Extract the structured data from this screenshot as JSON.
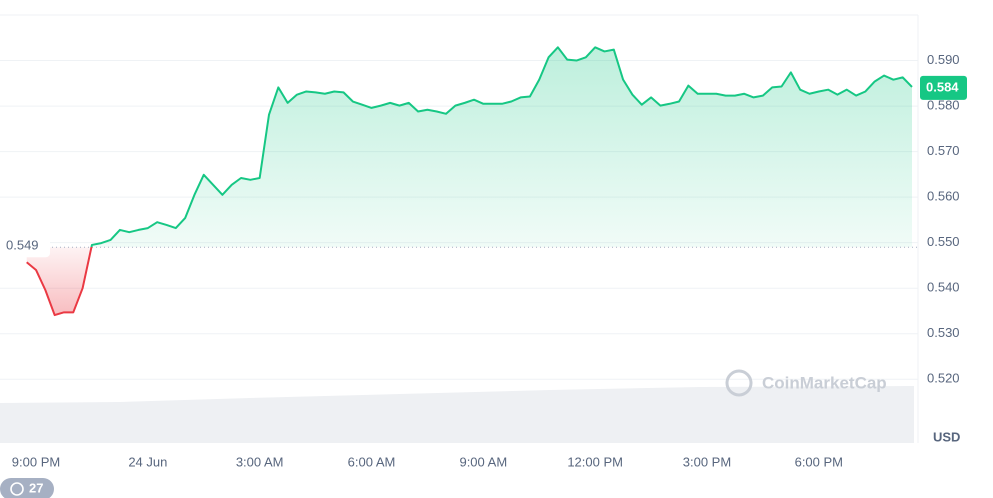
{
  "chart_data": {
    "type": "line",
    "categories": [
      null,
      "9:00 PM",
      null,
      null,
      null,
      null,
      null,
      null,
      null,
      null,
      null,
      null,
      null,
      "24 Jun",
      null,
      null,
      null,
      null,
      null,
      null,
      null,
      null,
      null,
      null,
      null,
      "3:00 AM",
      null,
      null,
      null,
      null,
      null,
      null,
      null,
      null,
      null,
      null,
      null,
      "6:00 AM",
      null,
      null,
      null,
      null,
      null,
      null,
      null,
      null,
      null,
      null,
      null,
      "9:00 AM",
      null,
      null,
      null,
      null,
      null,
      null,
      null,
      null,
      null,
      null,
      null,
      "12:00 PM",
      null,
      null,
      null,
      null,
      null,
      null,
      null,
      null,
      null,
      null,
      null,
      "3:00 PM",
      null,
      null,
      null,
      null,
      null,
      null,
      null,
      null,
      null,
      null,
      null,
      "6:00 PM",
      null,
      null,
      null,
      null,
      null,
      null,
      null,
      null,
      null,
      null
    ],
    "values": [
      0.5457,
      0.544,
      0.5396,
      0.5341,
      0.5347,
      0.5347,
      0.54,
      0.5495,
      0.5499,
      0.5506,
      0.5528,
      0.5523,
      0.5528,
      0.5532,
      0.5545,
      0.5539,
      0.5532,
      0.5554,
      0.5605,
      0.5649,
      0.5627,
      0.5605,
      0.5627,
      0.5642,
      0.5638,
      0.5642,
      0.5781,
      0.5841,
      0.5807,
      0.5825,
      0.5832,
      0.583,
      0.5827,
      0.5832,
      0.583,
      0.581,
      0.5803,
      0.5796,
      0.5801,
      0.5807,
      0.5801,
      0.5807,
      0.5788,
      0.5792,
      0.5788,
      0.5783,
      0.5801,
      0.5807,
      0.5814,
      0.5805,
      0.5805,
      0.5805,
      0.581,
      0.5819,
      0.5821,
      0.5858,
      0.5907,
      0.5929,
      0.5902,
      0.59,
      0.5907,
      0.5929,
      0.592,
      0.5924,
      0.5858,
      0.5825,
      0.5803,
      0.5819,
      0.5801,
      0.5805,
      0.581,
      0.5845,
      0.5827,
      0.5827,
      0.5827,
      0.5823,
      0.5823,
      0.5827,
      0.5819,
      0.5823,
      0.5841,
      0.5843,
      0.5874,
      0.5836,
      0.5827,
      0.5832,
      0.5836,
      0.5825,
      0.5836,
      0.5823,
      0.5832,
      0.5854,
      0.5867,
      0.5858,
      0.5863,
      0.5842
    ],
    "up_color": "#16c784",
    "down_color": "#ea3943",
    "baseline": 0.549,
    "last_value": 0.584,
    "ylim": [
      0.506,
      0.6
    ],
    "yticks": [
      {
        "value": 0.52,
        "label": "0.520"
      },
      {
        "value": 0.53,
        "label": "0.530"
      },
      {
        "value": 0.54,
        "label": "0.540"
      },
      {
        "value": 0.55,
        "label": "0.550"
      },
      {
        "value": 0.56,
        "label": "0.560"
      },
      {
        "value": 0.57,
        "label": "0.570"
      },
      {
        "value": 0.58,
        "label": "0.580"
      },
      {
        "value": 0.59,
        "label": "0.590"
      }
    ],
    "grid": true,
    "y_axis_label": "USD",
    "watermark": "CoinMarketCap",
    "badge": "27"
  }
}
